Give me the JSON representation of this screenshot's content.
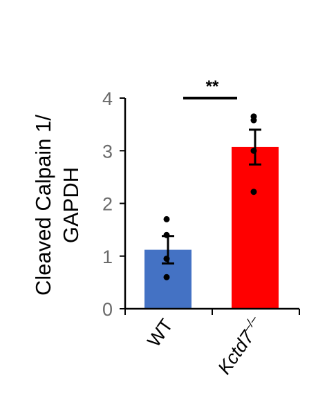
{
  "chart_data": {
    "type": "bar",
    "ylabel_line1": "Cleaved Calpain 1/",
    "ylabel_line2": "GAPDH",
    "ylim": [
      0,
      4
    ],
    "yticks": [
      "0",
      "1",
      "2",
      "3",
      "4"
    ],
    "categories": [
      "WT",
      "Kctd7"
    ],
    "category_superscripts": [
      "",
      "–/–"
    ],
    "values": [
      1.12,
      3.07
    ],
    "errors": [
      0.26,
      0.33
    ],
    "colors": [
      "#4472c4",
      "#ff0000"
    ],
    "points": [
      [
        1.7,
        1.4,
        0.95,
        0.6
      ],
      [
        3.65,
        3.58,
        3.0,
        2.22
      ]
    ],
    "significance": {
      "label": "**",
      "between": [
        0,
        1
      ],
      "y": 4.0
    },
    "grid": false,
    "legend": "none"
  }
}
